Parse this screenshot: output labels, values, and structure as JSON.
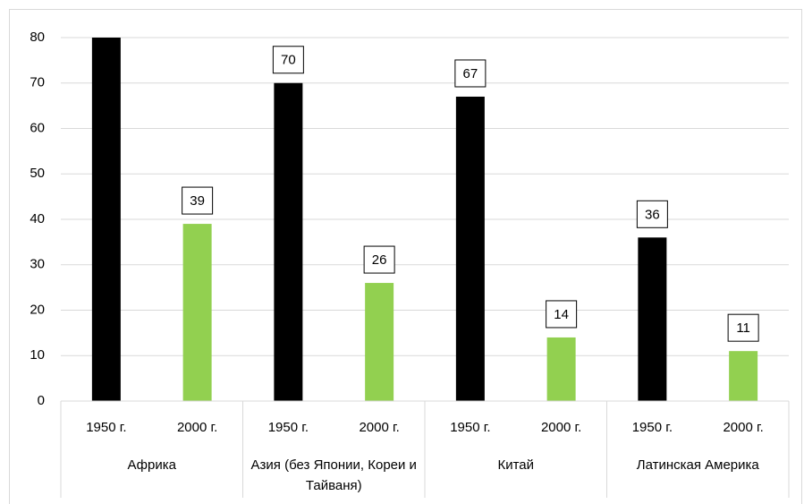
{
  "chart_data": {
    "type": "bar",
    "categories": [
      "1950 г.",
      "2000 г.",
      "1950 г.",
      "2000 г.",
      "1950 г.",
      "2000 г.",
      "1950 г.",
      "2000 г."
    ],
    "groups": [
      "Африка",
      "Азия (без Японии, Кореи и Тайваня)",
      "Китай",
      "Латинская Америка"
    ],
    "values": [
      80,
      39,
      70,
      26,
      67,
      14,
      36,
      11
    ],
    "colors": [
      "#000000",
      "#92d050",
      "#000000",
      "#92d050",
      "#000000",
      "#92d050",
      "#000000",
      "#92d050"
    ],
    "ylim": [
      0,
      80
    ],
    "yticks": [
      0,
      10,
      20,
      30,
      40,
      50,
      60,
      70,
      80
    ],
    "grid": true,
    "data_labels": true
  }
}
